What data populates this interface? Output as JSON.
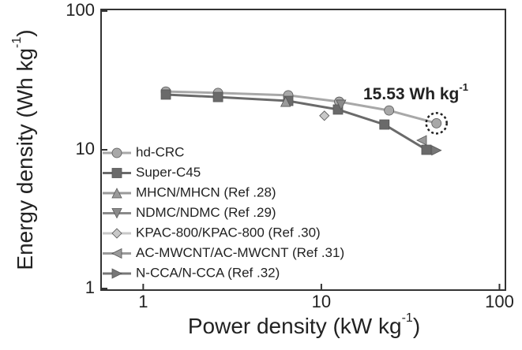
{
  "chart_data": {
    "type": "scatter",
    "x_label": {
      "text": "Power density (kW kg",
      "sup": "-1",
      "end": ")"
    },
    "y_label": {
      "text": "Energy density (Wh kg",
      "sup": "-1",
      "end": ")"
    },
    "annotation": {
      "text": "15.53 Wh kg",
      "sup": "-1"
    },
    "xlim": [
      0.58,
      108
    ],
    "ylim": [
      1,
      100
    ],
    "log_x": true,
    "log_y": true,
    "xticks": [
      1,
      10,
      100
    ],
    "yticks": [
      1,
      10,
      100
    ],
    "legend": "lower left",
    "series": [
      {
        "name": "hd-CRC",
        "color": "#a8a8a8",
        "marker": "circle",
        "line": true,
        "x": [
          1.34,
          2.63,
          6.52,
          12.6,
          24,
          44.3
        ],
        "values": [
          26.3,
          25.7,
          24.7,
          22.2,
          19.2,
          15.53
        ]
      },
      {
        "name": "Super-C45",
        "color": "#6a6a6a",
        "marker": "square",
        "line": true,
        "x": [
          1.34,
          2.63,
          6.52,
          12.4,
          22.6,
          38.9
        ],
        "values": [
          25.0,
          24.0,
          22.5,
          19.5,
          15.2,
          10.0
        ]
      },
      {
        "name": "MHCN/MHCN (Ref .28)",
        "color": "#9a9a9a",
        "marker": "triangle-up",
        "line": false,
        "x": [
          6.3
        ],
        "values": [
          22.2
        ]
      },
      {
        "name": "NDMC/NDMC (Ref .29)",
        "color": "#8a8a8a",
        "marker": "triangle-down",
        "line": false,
        "x": [
          12.9
        ],
        "values": [
          21.1
        ]
      },
      {
        "name": "KPAC-800/KPAC-800 (Ref .30)",
        "color": "#c8c8c8",
        "marker": "diamond",
        "line": false,
        "x": [
          10.4
        ],
        "values": [
          17.6
        ]
      },
      {
        "name": "AC-MWCNT/AC-MWCNT (Ref .31)",
        "color": "#9a9a9a",
        "marker": "triangle-left",
        "line": false,
        "x": [
          36.6
        ],
        "values": [
          11.7
        ]
      },
      {
        "name": "N-CCA/N-CCA (Ref .32)",
        "color": "#777777",
        "marker": "triangle-right",
        "line": false,
        "x": [
          44.3
        ],
        "values": [
          9.9
        ]
      }
    ]
  }
}
